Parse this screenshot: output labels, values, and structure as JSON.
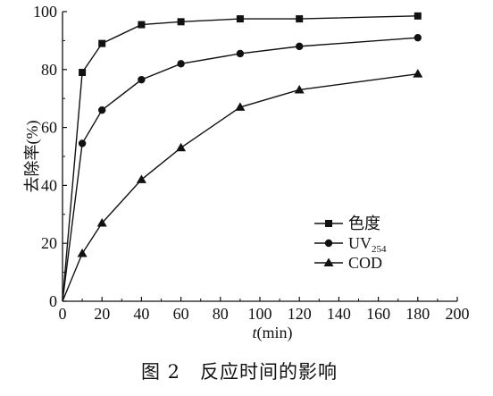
{
  "chart_data": {
    "type": "line",
    "caption": "图 2　反应时间的影响",
    "xlabel": {
      "var": "t",
      "unit": "(min)"
    },
    "ylabel": "去除率(%)",
    "xlim": [
      0,
      200
    ],
    "ylim": [
      0,
      100
    ],
    "xticks": [
      0,
      20,
      40,
      60,
      80,
      100,
      120,
      140,
      160,
      180,
      200
    ],
    "yticks": [
      0,
      20,
      40,
      60,
      80,
      100
    ],
    "grid": false,
    "legend_position": "center-right",
    "series": [
      {
        "name": "色度",
        "name_main": "色度",
        "name_sub": "",
        "marker": "square",
        "x": [
          0,
          10,
          20,
          40,
          60,
          90,
          120,
          180
        ],
        "y": [
          0,
          79,
          89,
          95.5,
          96.5,
          97.5,
          97.5,
          98.5
        ]
      },
      {
        "name": "UV254",
        "name_main": "UV",
        "name_sub": "254",
        "marker": "circle",
        "x": [
          0,
          10,
          20,
          40,
          60,
          90,
          120,
          180
        ],
        "y": [
          0,
          54.5,
          66,
          76.5,
          82,
          85.5,
          88,
          91
        ]
      },
      {
        "name": "COD",
        "name_main": "COD",
        "name_sub": "",
        "marker": "triangle",
        "x": [
          0,
          10,
          20,
          40,
          60,
          90,
          120,
          180
        ],
        "y": [
          0,
          16.5,
          27,
          42,
          53,
          67,
          73,
          78.5
        ]
      }
    ]
  }
}
